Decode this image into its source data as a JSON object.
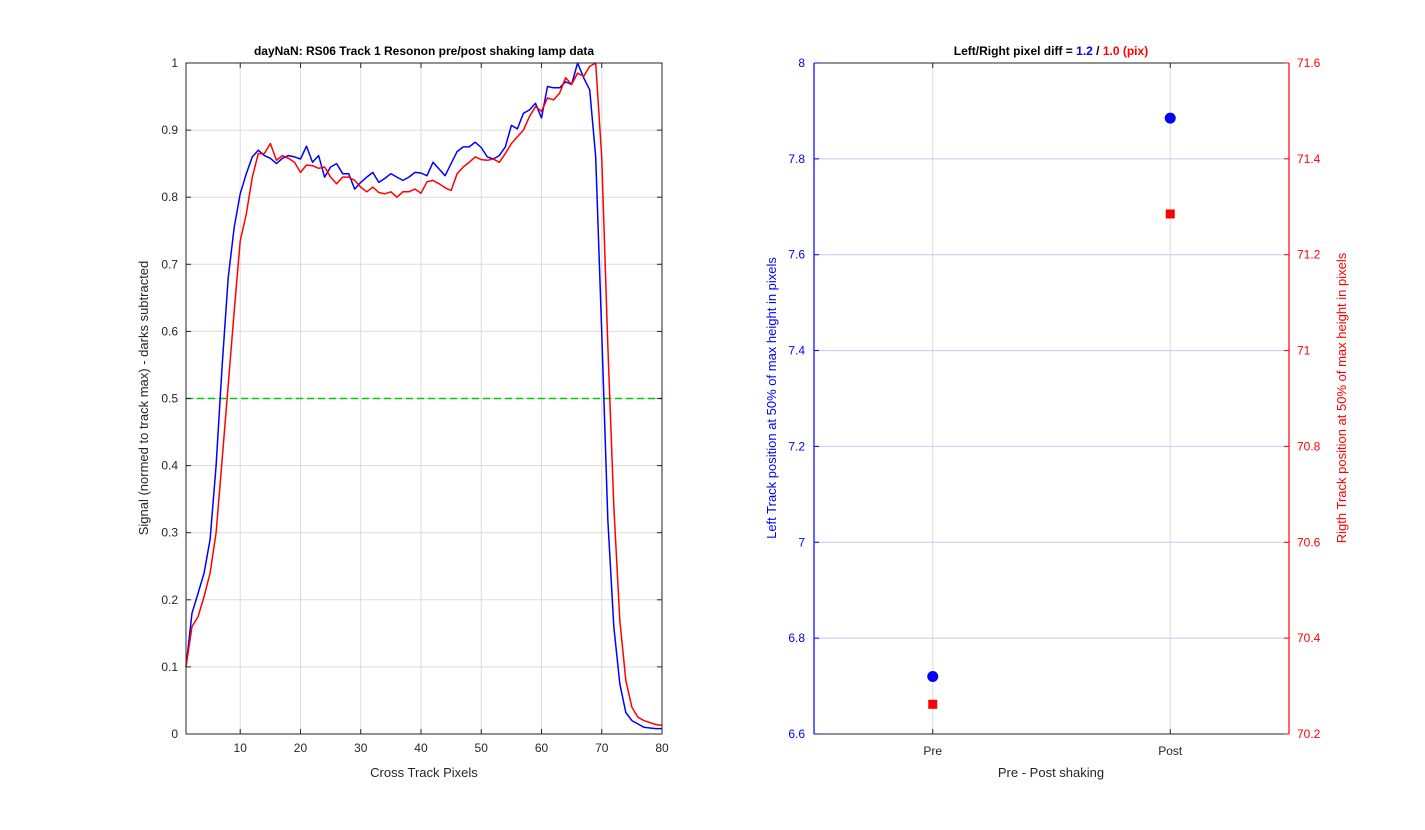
{
  "chart_data": [
    {
      "type": "line",
      "title": "dayNaN: RS06  Track 1 Resonon pre/post shaking lamp data",
      "xlabel": "Cross Track Pixels",
      "ylabel": "Signal (normed to track max) - darks subtracted",
      "xlim": [
        1,
        80
      ],
      "ylim": [
        0,
        1
      ],
      "xticks": [
        10,
        20,
        30,
        40,
        50,
        60,
        70,
        80
      ],
      "yticks": [
        0,
        0.1,
        0.2,
        0.3,
        0.4,
        0.5,
        0.6,
        0.7,
        0.8,
        0.9,
        1
      ],
      "xtick_labels": [
        "10",
        "20",
        "30",
        "40",
        "50",
        "60",
        "70",
        "80"
      ],
      "ytick_labels": [
        "0",
        "0.1",
        "0.2",
        "0.3",
        "0.4",
        "0.5",
        "0.6",
        "0.7",
        "0.8",
        "0.9",
        "1"
      ],
      "grid": true,
      "reference_line": {
        "y": 0.5,
        "color": "#00cc00",
        "style": "dashed"
      },
      "series": [
        {
          "color": "#0000ff",
          "x": [
            1,
            2,
            3,
            4,
            5,
            6,
            7,
            8,
            9,
            10,
            11,
            12,
            13,
            14,
            15,
            16,
            17,
            18,
            19,
            20,
            21,
            22,
            23,
            24,
            25,
            26,
            27,
            28,
            29,
            30,
            31,
            32,
            33,
            34,
            35,
            36,
            37,
            38,
            39,
            40,
            41,
            42,
            43,
            44,
            45,
            46,
            47,
            48,
            49,
            50,
            51,
            52,
            53,
            54,
            55,
            56,
            57,
            58,
            59,
            60,
            61,
            62,
            63,
            64,
            65,
            66,
            67,
            68,
            69,
            70,
            71,
            72,
            73,
            74,
            75,
            76,
            77,
            78,
            79,
            80
          ],
          "y": [
            0.1,
            0.18,
            0.21,
            0.24,
            0.29,
            0.4,
            0.55,
            0.68,
            0.755,
            0.805,
            0.835,
            0.86,
            0.87,
            0.862,
            0.858,
            0.85,
            0.858,
            0.862,
            0.86,
            0.857,
            0.876,
            0.852,
            0.862,
            0.83,
            0.845,
            0.85,
            0.835,
            0.835,
            0.812,
            0.822,
            0.83,
            0.837,
            0.822,
            0.828,
            0.835,
            0.83,
            0.825,
            0.83,
            0.837,
            0.836,
            0.832,
            0.852,
            0.842,
            0.832,
            0.85,
            0.868,
            0.875,
            0.875,
            0.882,
            0.874,
            0.86,
            0.857,
            0.862,
            0.875,
            0.907,
            0.902,
            0.925,
            0.93,
            0.94,
            0.918,
            0.965,
            0.963,
            0.963,
            0.972,
            0.968,
            1.0,
            0.978,
            0.96,
            0.86,
            0.6,
            0.32,
            0.16,
            0.075,
            0.032,
            0.02,
            0.015,
            0.01,
            0.009,
            0.008,
            0.008
          ]
        },
        {
          "color": "#ff0000",
          "x": [
            1,
            2,
            3,
            4,
            5,
            6,
            7,
            8,
            9,
            10,
            11,
            12,
            13,
            14,
            15,
            16,
            17,
            18,
            19,
            20,
            21,
            22,
            23,
            24,
            25,
            26,
            27,
            28,
            29,
            30,
            31,
            32,
            33,
            34,
            35,
            36,
            37,
            38,
            39,
            40,
            41,
            42,
            43,
            44,
            45,
            46,
            47,
            48,
            49,
            50,
            51,
            52,
            53,
            54,
            55,
            56,
            57,
            58,
            59,
            60,
            61,
            62,
            63,
            64,
            65,
            66,
            67,
            68,
            69,
            70,
            71,
            72,
            73,
            74,
            75,
            76,
            77,
            78,
            79,
            80
          ],
          "y": [
            0.1,
            0.16,
            0.175,
            0.205,
            0.24,
            0.3,
            0.41,
            0.52,
            0.63,
            0.735,
            0.775,
            0.83,
            0.865,
            0.865,
            0.88,
            0.855,
            0.862,
            0.858,
            0.852,
            0.837,
            0.848,
            0.847,
            0.843,
            0.845,
            0.83,
            0.82,
            0.83,
            0.83,
            0.825,
            0.815,
            0.808,
            0.815,
            0.807,
            0.805,
            0.808,
            0.8,
            0.808,
            0.808,
            0.812,
            0.806,
            0.823,
            0.825,
            0.82,
            0.814,
            0.81,
            0.835,
            0.845,
            0.852,
            0.86,
            0.856,
            0.855,
            0.857,
            0.852,
            0.865,
            0.88,
            0.89,
            0.9,
            0.92,
            0.935,
            0.928,
            0.948,
            0.945,
            0.955,
            0.978,
            0.968,
            0.985,
            0.98,
            0.995,
            1.0,
            0.86,
            0.58,
            0.34,
            0.17,
            0.08,
            0.04,
            0.025,
            0.02,
            0.017,
            0.014,
            0.013
          ]
        }
      ]
    },
    {
      "type": "scatter",
      "title_prefix": "Left/Right pixel diff = ",
      "title_blue": "1.2",
      "title_sep": " / ",
      "title_red": "1.0 (pix)",
      "xlabel": "Pre - Post shaking",
      "ylabel_left": "Left Track position at 50% of max height in pixels",
      "ylabel_right": "Rigth Track position at 50% of max height in pixels",
      "categories": [
        "Pre",
        "Post"
      ],
      "ylim_left": [
        6.6,
        8
      ],
      "ylim_right": [
        70.2,
        71.6
      ],
      "yticks_left": [
        "6.6",
        "6.8",
        "7",
        "7.2",
        "7.4",
        "7.6",
        "7.8",
        "8"
      ],
      "yticks_right": [
        "70.2",
        "70.4",
        "70.6",
        "70.8",
        "71",
        "71.2",
        "71.4",
        "71.6"
      ],
      "left_color": "#0000ff",
      "right_color": "#ff0000",
      "grid": true,
      "series": [
        {
          "axis": "left",
          "marker": "circle",
          "values": [
            6.72,
            7.885
          ]
        },
        {
          "axis": "right",
          "marker": "square",
          "values": [
            70.262,
            71.285
          ]
        }
      ]
    }
  ]
}
